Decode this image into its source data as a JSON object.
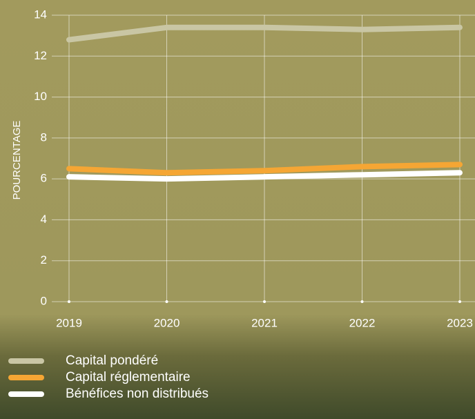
{
  "chart_data": {
    "type": "line",
    "y_label": "POURCENTAGE",
    "x": [
      "2019",
      "2020",
      "2021",
      "2022",
      "2023"
    ],
    "series": [
      {
        "name": "Capital pondéré",
        "color": "#c9c6a4",
        "values": [
          12.8,
          13.4,
          13.4,
          13.3,
          13.4
        ]
      },
      {
        "name": "Capital réglementaire",
        "color": "#f5a634",
        "values": [
          6.5,
          6.3,
          6.4,
          6.6,
          6.7
        ]
      },
      {
        "name": "Bénéfices non distribués",
        "color": "#ffffff",
        "values": [
          6.1,
          6.0,
          6.1,
          6.2,
          6.3
        ]
      }
    ],
    "ylim": [
      0,
      14
    ],
    "yticks": [
      0,
      2,
      4,
      6,
      8,
      10,
      12,
      14
    ],
    "grid": true
  }
}
